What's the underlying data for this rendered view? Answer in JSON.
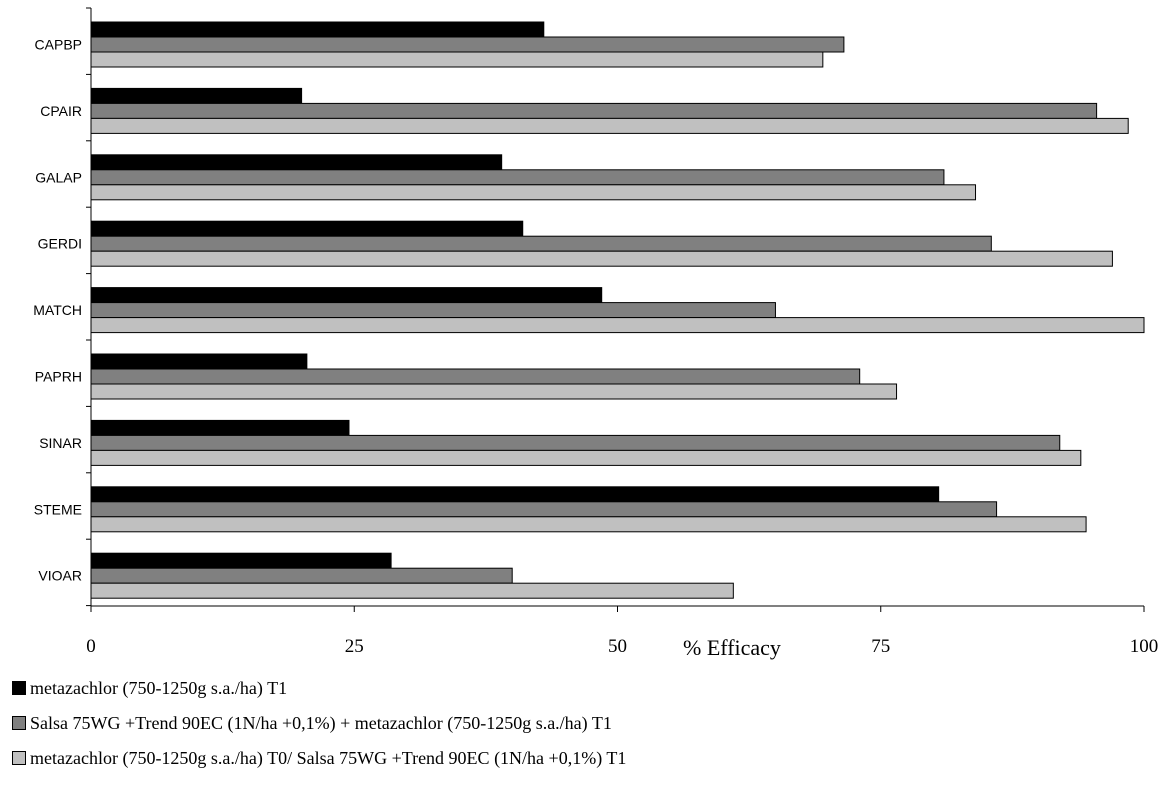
{
  "chart_data": {
    "type": "bar",
    "orientation": "horizontal",
    "categories": [
      "CAPBP",
      "CPAIR",
      "GALAP",
      "GERDI",
      "MATCH",
      "PAPRH",
      "SINAR",
      "STEME",
      "VIOAR"
    ],
    "series": [
      {
        "name": "metazachlor (750-1250g s.a./ha) T1",
        "color": "#000000",
        "values": [
          43,
          20,
          39,
          41,
          48.5,
          20.5,
          24.5,
          80.5,
          28.5
        ]
      },
      {
        "name": "Salsa 75WG +Trend 90EC (1N/ha +0,1%) + metazachlor (750-1250g s.a./ha) T1",
        "color": "#808080",
        "values": [
          71.5,
          95.5,
          81,
          85.5,
          65,
          73,
          92,
          86,
          40
        ]
      },
      {
        "name": "metazachlor (750-1250g s.a./ha) T0/ Salsa 75WG +Trend 90EC (1N/ha +0,1%) T1",
        "color": "#c0c0c0",
        "values": [
          69.5,
          98.5,
          84,
          97,
          100,
          76.5,
          94,
          94.5,
          61
        ]
      }
    ],
    "xlim": [
      0,
      100
    ],
    "xticks": [
      "0",
      "25",
      "50",
      "75",
      "100"
    ],
    "xlabel": "% Efficacy",
    "ylabel": "",
    "title": "",
    "grid": false,
    "legend_position": "bottom"
  }
}
